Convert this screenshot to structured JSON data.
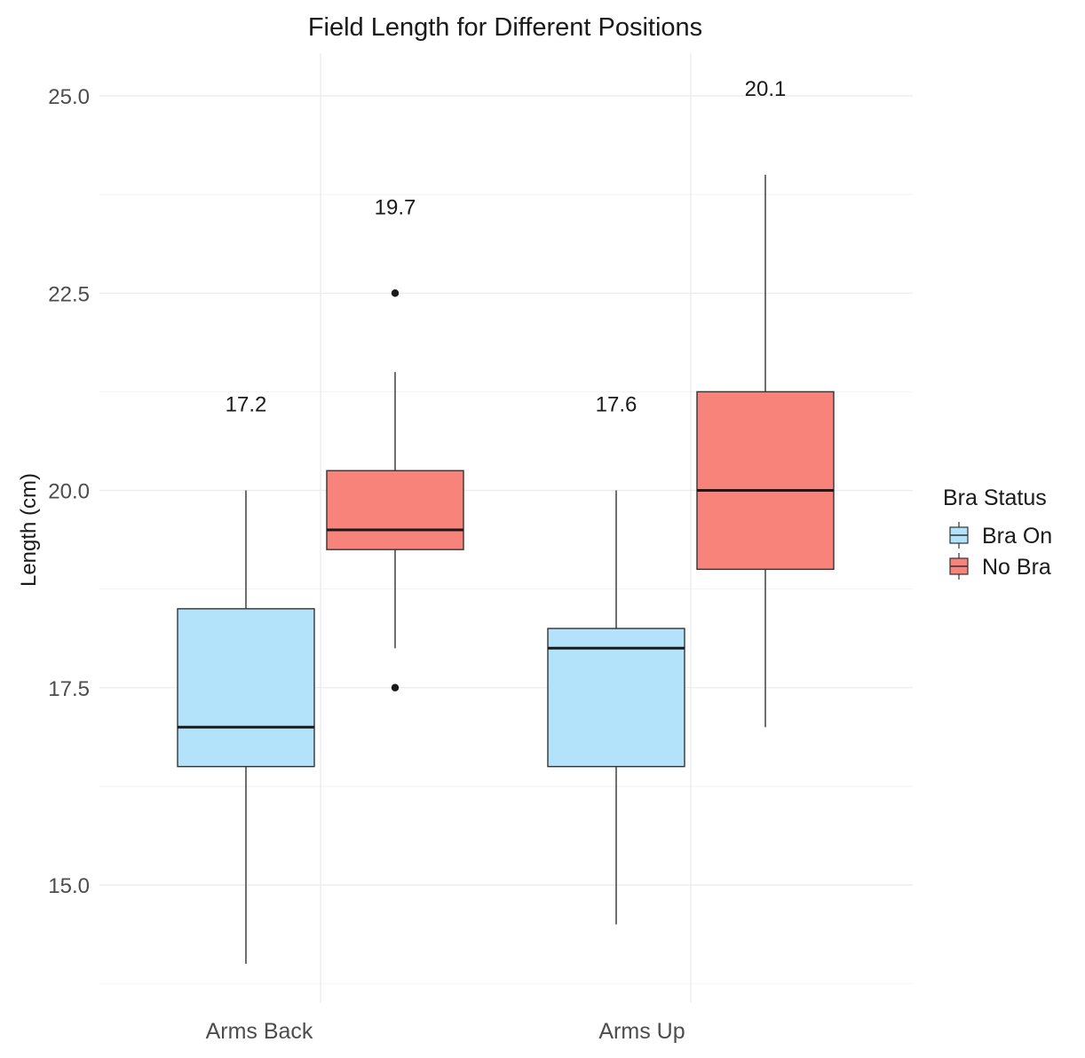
{
  "chart_data": {
    "type": "box",
    "title": "Field Length for Different Positions",
    "xlabel": "",
    "ylabel": "Length (cm)",
    "ylim": [
      13.6,
      25.6
    ],
    "yticks": [
      15.0,
      17.5,
      20.0,
      22.5,
      25.0
    ],
    "ytick_labels": [
      "15.0",
      "17.5",
      "20.0",
      "22.5",
      "25.0"
    ],
    "categories": [
      "Arms Back",
      "Arms Up"
    ],
    "grid": true,
    "legend": {
      "title": "Bra Status",
      "position": "right",
      "entries": [
        "Bra On",
        "No Bra"
      ]
    },
    "series": [
      {
        "name": "Bra On",
        "color": "#b3e2fb",
        "boxes": [
          {
            "category": "Arms Back",
            "min": 14.0,
            "q1": 16.5,
            "median": 17.0,
            "q3": 18.5,
            "max": 20.0,
            "outliers": [],
            "mean_label": "17.2"
          },
          {
            "category": "Arms Up",
            "min": 14.5,
            "q1": 16.5,
            "median": 18.0,
            "q3": 18.25,
            "max": 20.0,
            "outliers": [],
            "mean_label": "17.6"
          }
        ]
      },
      {
        "name": "No Bra",
        "color": "#f8837a",
        "boxes": [
          {
            "category": "Arms Back",
            "min": 18.0,
            "q1": 19.25,
            "median": 19.5,
            "q3": 20.25,
            "max": 21.5,
            "outliers": [
              22.5,
              17.5
            ],
            "mean_label": "19.7"
          },
          {
            "category": "Arms Up",
            "min": 17.0,
            "q1": 19.0,
            "median": 20.0,
            "q3": 21.25,
            "max": 24.0,
            "outliers": [],
            "mean_label": "20.1"
          }
        ]
      }
    ],
    "mean_label_y": [
      21.1,
      23.6,
      21.1,
      25.1
    ]
  }
}
